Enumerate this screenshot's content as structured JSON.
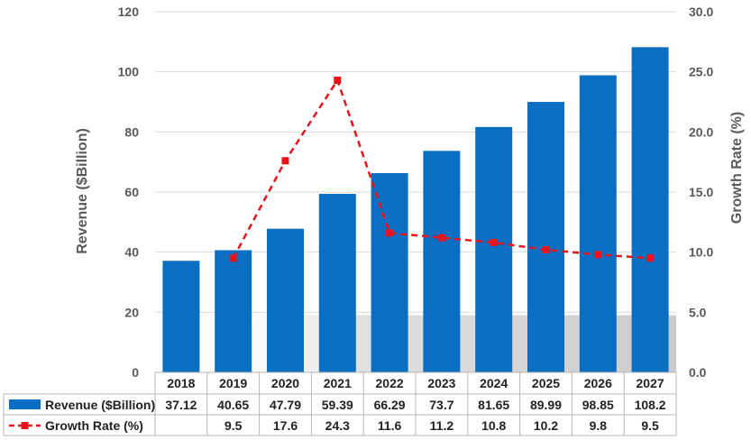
{
  "chart_data": {
    "type": "bar",
    "categories": [
      "2018",
      "2019",
      "2020",
      "2021",
      "2022",
      "2023",
      "2024",
      "2025",
      "2026",
      "2027"
    ],
    "series": [
      {
        "name": "Revenue ($Billion)",
        "type": "bar",
        "axis": "left",
        "color": "#0A6EC2",
        "values": [
          37.12,
          40.65,
          47.79,
          59.39,
          66.29,
          73.7,
          81.65,
          89.99,
          98.85,
          108.2
        ],
        "labels": [
          "37.12",
          "40.65",
          "47.79",
          "59.39",
          "66.29",
          "73.7",
          "81.65",
          "89.99",
          "98.85",
          "108.2"
        ]
      },
      {
        "name": "Growth Rate (%)",
        "type": "line",
        "axis": "right",
        "color": "#E8141B",
        "line_style": "dashed",
        "marker": "square",
        "values": [
          null,
          9.5,
          17.6,
          24.3,
          11.6,
          11.2,
          10.8,
          10.2,
          9.8,
          9.5
        ],
        "labels": [
          "",
          "9.5",
          "17.6",
          "24.3",
          "11.6",
          "11.2",
          "10.8",
          "10.2",
          "9.8",
          "9.5"
        ]
      }
    ],
    "ylabel": "Revenue ($Billion)",
    "y2label": "Growth Rate (%)",
    "ylim": [
      0,
      120
    ],
    "y2lim": [
      0,
      30
    ],
    "yticks": [
      "0",
      "20",
      "40",
      "60",
      "80",
      "100",
      "120"
    ],
    "y2ticks": [
      "0.0",
      "5.0",
      "10.0",
      "15.0",
      "20.0",
      "25.0",
      "30.0"
    ],
    "grid": true,
    "legend": "data-table-left"
  }
}
